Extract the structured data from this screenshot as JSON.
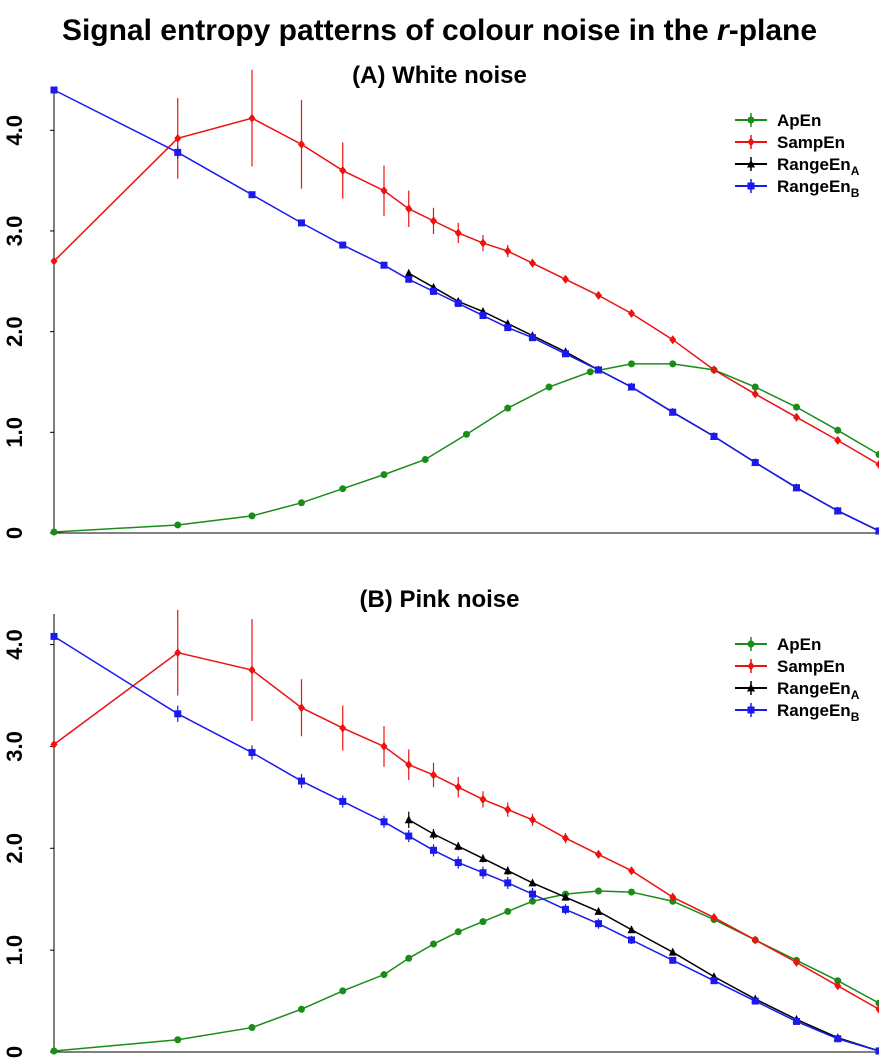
{
  "title": {
    "prefix": "Signal entropy patterns of colour noise in the ",
    "italic": "r",
    "suffix": "-plane"
  },
  "chart_data": [
    {
      "type": "line",
      "title": "(A) White noise",
      "xlabel": "",
      "ylabel": "",
      "ylim": [
        0,
        4.4
      ],
      "xlim": [
        0,
        1
      ],
      "yticks": [
        0,
        1.0,
        2.0,
        3.0,
        4.0
      ],
      "ytick_labels": [
        "0",
        "1.0",
        "2.0",
        "3.0",
        "4.0"
      ],
      "grid": false,
      "legend": "top-right",
      "series": [
        {
          "name": "ApEn",
          "color": "#1a8c1a",
          "marker": "circle",
          "x": [
            0.0,
            0.15,
            0.24,
            0.3,
            0.35,
            0.4,
            0.45,
            0.5,
            0.55,
            0.6,
            0.65,
            0.7,
            0.75,
            0.8,
            0.85,
            0.9,
            0.95,
            1.0
          ],
          "y": [
            0.01,
            0.08,
            0.17,
            0.3,
            0.44,
            0.58,
            0.73,
            0.98,
            1.24,
            1.45,
            1.6,
            1.68,
            1.68,
            1.62,
            1.45,
            1.25,
            1.02,
            0.78
          ],
          "err": [
            0,
            0,
            0,
            0,
            0,
            0,
            0,
            0,
            0,
            0,
            0,
            0,
            0,
            0,
            0,
            0,
            0,
            0
          ]
        },
        {
          "name": "SampEn",
          "color": "#ee1111",
          "marker": "diamond",
          "x": [
            0.0,
            0.15,
            0.24,
            0.3,
            0.35,
            0.4,
            0.43,
            0.46,
            0.49,
            0.52,
            0.55,
            0.58,
            0.62,
            0.66,
            0.7,
            0.75,
            0.8,
            0.85,
            0.9,
            0.95,
            1.0
          ],
          "y": [
            2.7,
            3.92,
            4.12,
            3.86,
            3.6,
            3.4,
            3.22,
            3.1,
            2.98,
            2.88,
            2.8,
            2.68,
            2.52,
            2.36,
            2.18,
            1.92,
            1.62,
            1.38,
            1.15,
            0.92,
            0.68
          ],
          "err": [
            0,
            0.4,
            0.48,
            0.44,
            0.28,
            0.25,
            0.18,
            0.13,
            0.1,
            0.08,
            0.06,
            0.04,
            0.03,
            0.02,
            0.02,
            0.01,
            0.01,
            0.01,
            0.01,
            0.01,
            0.01
          ]
        },
        {
          "name": "RangeEn_A",
          "color": "#000000",
          "marker": "triangle",
          "x": [
            0.43,
            0.46,
            0.49,
            0.52,
            0.55,
            0.58,
            0.62,
            0.66,
            0.7,
            0.75,
            0.8,
            0.85,
            0.9,
            0.95,
            1.0
          ],
          "y": [
            2.58,
            2.44,
            2.3,
            2.2,
            2.08,
            1.96,
            1.8,
            1.62,
            1.45,
            1.2,
            0.96,
            0.7,
            0.45,
            0.22,
            0.02
          ],
          "err": [
            0,
            0,
            0,
            0,
            0,
            0,
            0,
            0,
            0,
            0,
            0,
            0,
            0,
            0,
            0
          ]
        },
        {
          "name": "RangeEn_B",
          "color": "#1a1aee",
          "marker": "square",
          "x": [
            0.0,
            0.15,
            0.24,
            0.3,
            0.35,
            0.4,
            0.43,
            0.46,
            0.49,
            0.52,
            0.55,
            0.58,
            0.62,
            0.66,
            0.7,
            0.75,
            0.8,
            0.85,
            0.9,
            0.95,
            1.0
          ],
          "y": [
            4.4,
            3.78,
            3.36,
            3.08,
            2.86,
            2.66,
            2.52,
            2.4,
            2.28,
            2.16,
            2.04,
            1.94,
            1.78,
            1.62,
            1.45,
            1.2,
            0.96,
            0.7,
            0.45,
            0.22,
            0.02
          ],
          "err": [
            0,
            0.06,
            0.02,
            0,
            0,
            0,
            0,
            0,
            0,
            0,
            0,
            0,
            0,
            0,
            0,
            0,
            0,
            0,
            0,
            0,
            0
          ]
        }
      ]
    },
    {
      "type": "line",
      "title": "(B) Pink noise",
      "xlabel": "",
      "ylabel": "",
      "ylim": [
        0,
        4.3
      ],
      "xlim": [
        0,
        1
      ],
      "yticks": [
        0,
        1.0,
        2.0,
        3.0,
        4.0
      ],
      "ytick_labels": [
        "0",
        "1.0",
        "2.0",
        "3.0",
        "4.0"
      ],
      "grid": false,
      "legend": "top-right",
      "series": [
        {
          "name": "ApEn",
          "color": "#1a8c1a",
          "marker": "circle",
          "x": [
            0.0,
            0.15,
            0.24,
            0.3,
            0.35,
            0.4,
            0.43,
            0.46,
            0.49,
            0.52,
            0.55,
            0.58,
            0.62,
            0.66,
            0.7,
            0.75,
            0.8,
            0.85,
            0.9,
            0.95,
            1.0
          ],
          "y": [
            0.01,
            0.12,
            0.24,
            0.42,
            0.6,
            0.76,
            0.92,
            1.06,
            1.18,
            1.28,
            1.38,
            1.48,
            1.55,
            1.58,
            1.57,
            1.48,
            1.3,
            1.1,
            0.9,
            0.7,
            0.48
          ],
          "err": [
            0,
            0,
            0,
            0,
            0,
            0,
            0,
            0,
            0,
            0,
            0,
            0,
            0,
            0,
            0,
            0,
            0,
            0,
            0,
            0,
            0
          ]
        },
        {
          "name": "SampEn",
          "color": "#ee1111",
          "marker": "diamond",
          "x": [
            0.0,
            0.15,
            0.24,
            0.3,
            0.35,
            0.4,
            0.43,
            0.46,
            0.49,
            0.52,
            0.55,
            0.58,
            0.62,
            0.66,
            0.7,
            0.75,
            0.8,
            0.85,
            0.9,
            0.95,
            1.0
          ],
          "y": [
            3.02,
            3.92,
            3.75,
            3.38,
            3.18,
            3.0,
            2.82,
            2.72,
            2.6,
            2.48,
            2.38,
            2.28,
            2.1,
            1.94,
            1.78,
            1.52,
            1.32,
            1.1,
            0.88,
            0.65,
            0.42
          ],
          "err": [
            0,
            0.42,
            0.5,
            0.28,
            0.22,
            0.2,
            0.15,
            0.12,
            0.1,
            0.08,
            0.07,
            0.06,
            0.05,
            0.04,
            0.03,
            0.03,
            0.03,
            0.03,
            0.03,
            0.03,
            0.03
          ]
        },
        {
          "name": "RangeEn_A",
          "color": "#000000",
          "marker": "triangle",
          "x": [
            0.43,
            0.46,
            0.49,
            0.52,
            0.55,
            0.58,
            0.62,
            0.66,
            0.7,
            0.75,
            0.8,
            0.85,
            0.9,
            0.95,
            1.0
          ],
          "y": [
            2.28,
            2.14,
            2.02,
            1.9,
            1.78,
            1.66,
            1.52,
            1.38,
            1.2,
            0.98,
            0.74,
            0.52,
            0.32,
            0.14,
            0.01
          ],
          "err": [
            0.08,
            0.05,
            0.04,
            0.04,
            0.04,
            0.03,
            0.03,
            0.03,
            0.03,
            0.02,
            0.02,
            0.02,
            0.01,
            0.01,
            0.01
          ]
        },
        {
          "name": "RangeEn_B",
          "color": "#1a1aee",
          "marker": "square",
          "x": [
            0.0,
            0.15,
            0.24,
            0.3,
            0.35,
            0.4,
            0.43,
            0.46,
            0.49,
            0.52,
            0.55,
            0.58,
            0.62,
            0.66,
            0.7,
            0.75,
            0.8,
            0.85,
            0.9,
            0.95,
            1.0
          ],
          "y": [
            4.08,
            3.32,
            2.94,
            2.66,
            2.46,
            2.26,
            2.12,
            1.98,
            1.86,
            1.76,
            1.66,
            1.55,
            1.4,
            1.26,
            1.1,
            0.9,
            0.7,
            0.5,
            0.3,
            0.13,
            0.01
          ],
          "err": [
            0,
            0.08,
            0.07,
            0.07,
            0.06,
            0.06,
            0.06,
            0.06,
            0.06,
            0.06,
            0.06,
            0.06,
            0.05,
            0.05,
            0.04,
            0.03,
            0.03,
            0.02,
            0.02,
            0.02,
            0.01
          ]
        }
      ]
    }
  ]
}
